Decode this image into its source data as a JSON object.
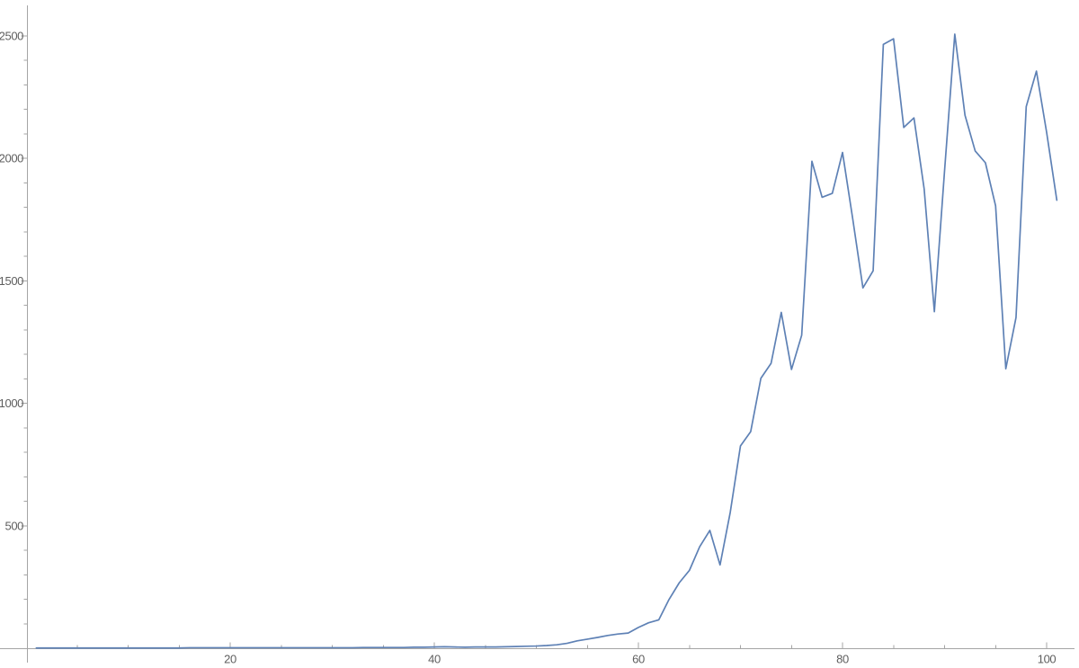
{
  "chart_data": {
    "type": "line",
    "title": "",
    "xlabel": "",
    "ylabel": "",
    "legend_position": "none",
    "grid": false,
    "frame": "axes-only",
    "xlim": [
      0,
      102.7
    ],
    "ylim": [
      0,
      2600
    ],
    "x_major_ticks": [
      20,
      40,
      60,
      80,
      100
    ],
    "x_minor_tick_step": 5,
    "y_major_ticks": [
      500,
      1000,
      1500,
      2000,
      2500
    ],
    "y_minor_tick_step": 100,
    "x_start": 1,
    "x_step": 1,
    "series": [
      {
        "name": "series-1",
        "color": "#5e81b5",
        "values": [
          1,
          1,
          1,
          1,
          1,
          1,
          1,
          1,
          1,
          1,
          1,
          1,
          1,
          1,
          1,
          2,
          2,
          2,
          2,
          2,
          2,
          2,
          2,
          2,
          2,
          2,
          2,
          2,
          2,
          2,
          2,
          2,
          3,
          3,
          3,
          3,
          3,
          4,
          4,
          5,
          6,
          5,
          4,
          5,
          5,
          5,
          6,
          7,
          8,
          9,
          11,
          14,
          20,
          30,
          37,
          44,
          52,
          58,
          62,
          85,
          104,
          116,
          199,
          267,
          318,
          414,
          481,
          340,
          555,
          826,
          884,
          1102,
          1163,
          1371,
          1138,
          1278,
          1988,
          1841,
          1857,
          2024,
          1753,
          1471,
          1541,
          2465,
          2488,
          2126,
          2165,
          1875,
          1374,
          1950,
          2507,
          2176,
          2030,
          1982,
          1806,
          1141,
          1350,
          2211,
          2356,
          2106,
          1829
        ]
      }
    ]
  },
  "style": {
    "background_color": "#ffffff",
    "line_color": "#5e81b5",
    "axis_color": "#a5a5a5",
    "tick_label_color": "#5e5e5e"
  }
}
